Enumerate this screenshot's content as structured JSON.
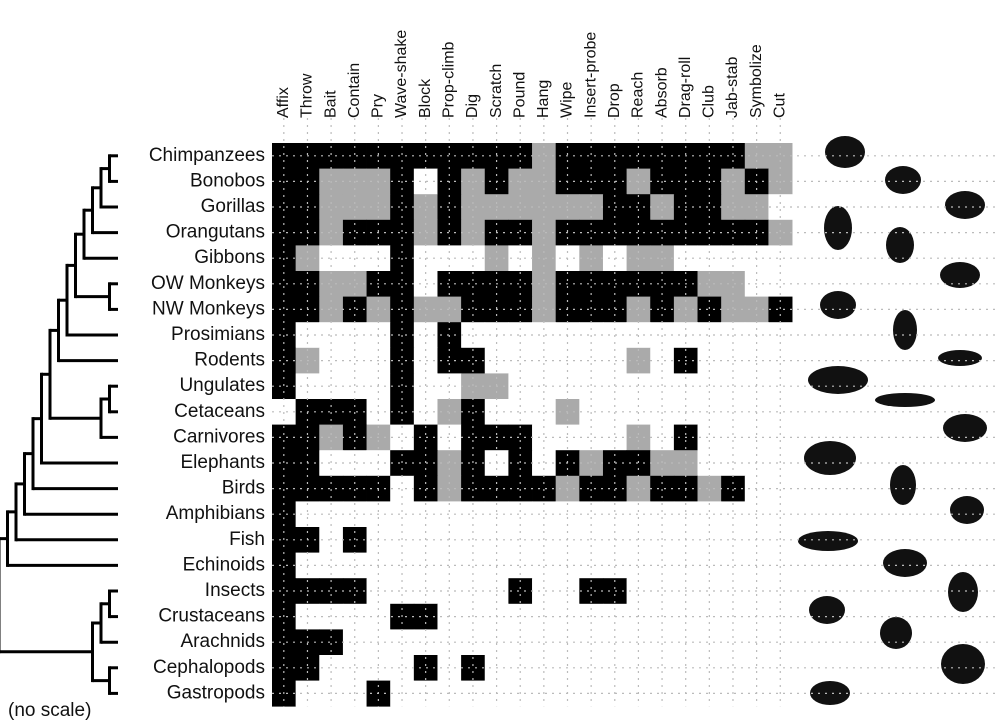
{
  "chart_data": {
    "type": "heatmap",
    "x": [
      "Affix",
      "Throw",
      "Bait",
      "Contain",
      "Pry",
      "Wave-shake",
      "Block",
      "Prop-climb",
      "Dig",
      "Scratch",
      "Pound",
      "Hang",
      "Wipe",
      "Insert-probe",
      "Drop",
      "Reach",
      "Absorb",
      "Drag-roll",
      "Club",
      "Jab-stab",
      "Symbolize",
      "Cut"
    ],
    "y": [
      "Chimpanzees",
      "Bonobos",
      "Gorillas",
      "Orangutans",
      "Gibbons",
      "OW Monkeys",
      "NW Monkeys",
      "Prosimians",
      "Rodents",
      "Ungulates",
      "Cetaceans",
      "Carnivores",
      "Elephants",
      "Birds",
      "Amphibians",
      "Fish",
      "Echinoids",
      "Insects",
      "Crustaceans",
      "Arachnids",
      "Cephalopods",
      "Gastropods"
    ],
    "state_colors": [
      "#ffffff",
      "#aaaaaa",
      "#000000"
    ],
    "values": [
      [
        2,
        2,
        2,
        2,
        2,
        2,
        2,
        2,
        2,
        2,
        2,
        1,
        2,
        2,
        2,
        2,
        2,
        2,
        2,
        2,
        1,
        1
      ],
      [
        2,
        2,
        1,
        1,
        1,
        2,
        0,
        2,
        1,
        2,
        1,
        1,
        2,
        2,
        2,
        1,
        2,
        2,
        2,
        1,
        2,
        1
      ],
      [
        2,
        2,
        1,
        1,
        1,
        2,
        1,
        2,
        1,
        1,
        1,
        1,
        1,
        1,
        2,
        2,
        1,
        2,
        2,
        1,
        1,
        0
      ],
      [
        2,
        2,
        1,
        2,
        2,
        2,
        1,
        2,
        1,
        2,
        2,
        1,
        2,
        2,
        2,
        2,
        2,
        2,
        2,
        2,
        2,
        1
      ],
      [
        2,
        1,
        0,
        0,
        0,
        2,
        0,
        0,
        0,
        1,
        0,
        1,
        0,
        1,
        0,
        1,
        1,
        0,
        0,
        0,
        0,
        0
      ],
      [
        2,
        2,
        1,
        1,
        2,
        2,
        0,
        2,
        2,
        2,
        2,
        1,
        2,
        2,
        2,
        2,
        2,
        2,
        1,
        1,
        0,
        0
      ],
      [
        2,
        2,
        1,
        2,
        1,
        2,
        1,
        1,
        2,
        2,
        2,
        1,
        2,
        2,
        2,
        1,
        2,
        1,
        2,
        1,
        1,
        2
      ],
      [
        2,
        0,
        0,
        0,
        0,
        2,
        0,
        2,
        0,
        0,
        0,
        0,
        0,
        0,
        0,
        0,
        0,
        0,
        0,
        0,
        0,
        0
      ],
      [
        2,
        1,
        0,
        0,
        0,
        2,
        0,
        2,
        2,
        0,
        0,
        0,
        0,
        0,
        0,
        1,
        0,
        2,
        0,
        0,
        0,
        0
      ],
      [
        2,
        0,
        0,
        0,
        0,
        2,
        0,
        0,
        1,
        1,
        0,
        0,
        0,
        0,
        0,
        0,
        0,
        0,
        0,
        0,
        0,
        0
      ],
      [
        0,
        2,
        2,
        2,
        0,
        2,
        0,
        1,
        2,
        0,
        0,
        0,
        1,
        0,
        0,
        0,
        0,
        0,
        0,
        0,
        0,
        0
      ],
      [
        2,
        2,
        1,
        2,
        1,
        0,
        2,
        0,
        2,
        2,
        2,
        0,
        0,
        0,
        0,
        1,
        0,
        2,
        0,
        0,
        0,
        0
      ],
      [
        2,
        2,
        0,
        0,
        0,
        2,
        2,
        1,
        2,
        0,
        2,
        0,
        2,
        1,
        2,
        2,
        1,
        1,
        0,
        0,
        0,
        0
      ],
      [
        2,
        2,
        2,
        2,
        2,
        0,
        2,
        1,
        2,
        2,
        2,
        2,
        1,
        2,
        2,
        1,
        2,
        2,
        1,
        2,
        0,
        0
      ],
      [
        2,
        0,
        0,
        0,
        0,
        0,
        0,
        0,
        0,
        0,
        0,
        0,
        0,
        0,
        0,
        0,
        0,
        0,
        0,
        0,
        0,
        0
      ],
      [
        2,
        2,
        0,
        2,
        0,
        0,
        0,
        0,
        0,
        0,
        0,
        0,
        0,
        0,
        0,
        0,
        0,
        0,
        0,
        0,
        0,
        0
      ],
      [
        2,
        0,
        0,
        0,
        0,
        0,
        0,
        0,
        0,
        0,
        0,
        0,
        0,
        0,
        0,
        0,
        0,
        0,
        0,
        0,
        0,
        0
      ],
      [
        2,
        2,
        2,
        2,
        0,
        0,
        0,
        0,
        0,
        0,
        2,
        0,
        0,
        2,
        2,
        0,
        0,
        0,
        0,
        0,
        0,
        0
      ],
      [
        2,
        0,
        0,
        0,
        0,
        2,
        2,
        0,
        0,
        0,
        0,
        0,
        0,
        0,
        0,
        0,
        0,
        0,
        0,
        0,
        0,
        0
      ],
      [
        2,
        2,
        2,
        0,
        0,
        0,
        0,
        0,
        0,
        0,
        0,
        0,
        0,
        0,
        0,
        0,
        0,
        0,
        0,
        0,
        0,
        0
      ],
      [
        2,
        2,
        0,
        0,
        0,
        0,
        2,
        0,
        2,
        0,
        0,
        0,
        0,
        0,
        0,
        0,
        0,
        0,
        0,
        0,
        0,
        0
      ],
      [
        2,
        0,
        0,
        0,
        2,
        0,
        0,
        0,
        0,
        0,
        0,
        0,
        0,
        0,
        0,
        0,
        0,
        0,
        0,
        0,
        0,
        0
      ]
    ],
    "note": "(no scale)"
  }
}
